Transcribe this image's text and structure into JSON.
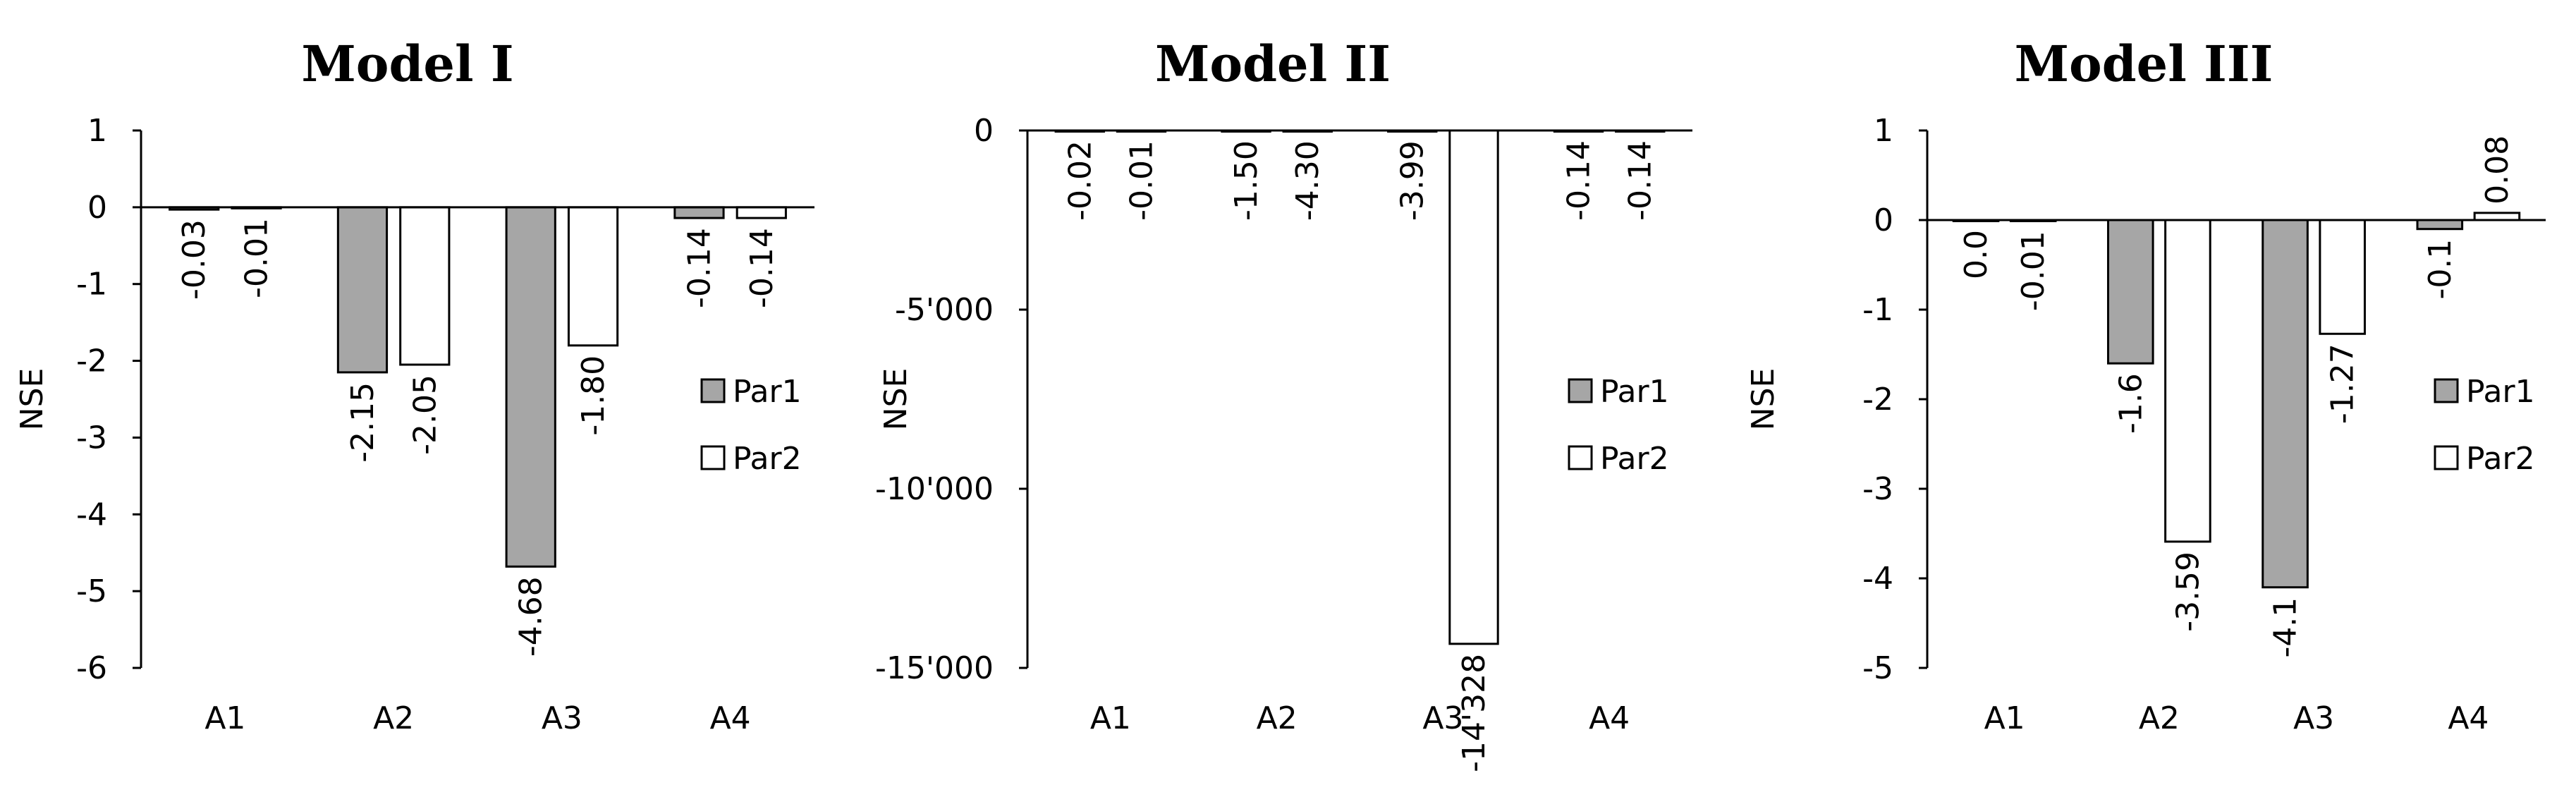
{
  "colors": {
    "Par1": "#a6a6a6",
    "Par2": "#ffffff",
    "stroke": "#000000"
  },
  "chart_data": [
    {
      "type": "bar",
      "title": "Model I",
      "ylabel": "NSE",
      "ylim": [
        -6,
        1
      ],
      "yticks": [
        1,
        0,
        -1,
        -2,
        -3,
        -4,
        -5,
        -6
      ],
      "ytick_labels": [
        "1",
        "0",
        "-1",
        "-2",
        "-3",
        "-4",
        "-5",
        "-6"
      ],
      "categories": [
        "A1",
        "A2",
        "A3",
        "A4"
      ],
      "series": [
        {
          "name": "Par1",
          "values": [
            -0.03,
            -2.15,
            -4.68,
            -0.14
          ],
          "labels": [
            "-0.03",
            "-2.15",
            "-4.68",
            "-0.14"
          ]
        },
        {
          "name": "Par2",
          "values": [
            -0.01,
            -2.05,
            -1.8,
            -0.14
          ],
          "labels": [
            "-0.01",
            "-2.05",
            "-1.80",
            "-0.14"
          ]
        }
      ],
      "legend": "right"
    },
    {
      "type": "bar",
      "title": "Model II",
      "ylabel": "NSE",
      "ylim": [
        -15000,
        0
      ],
      "yticks": [
        0,
        -5000,
        -10000,
        -15000
      ],
      "ytick_labels": [
        "0",
        "-5'000",
        "-10'000",
        "-15'000"
      ],
      "categories": [
        "A1",
        "A2",
        "A3",
        "A4"
      ],
      "series": [
        {
          "name": "Par1",
          "values": [
            -0.02,
            -1.5,
            -3.99,
            -0.14
          ],
          "labels": [
            "-0.02",
            "-1.50",
            "-3.99",
            "-0.14"
          ]
        },
        {
          "name": "Par2",
          "values": [
            -0.01,
            -4.3,
            -14328,
            -0.14
          ],
          "labels": [
            "-0.01",
            "-4.30",
            "-14'328",
            "-0.14"
          ]
        }
      ],
      "legend": "right"
    },
    {
      "type": "bar",
      "title": "Model III",
      "ylabel": "NSE",
      "ylim": [
        -5,
        1
      ],
      "yticks": [
        1,
        0,
        -1,
        -2,
        -3,
        -4,
        -5
      ],
      "ytick_labels": [
        "1",
        "0",
        "-1",
        "-2",
        "-3",
        "-4",
        "-5"
      ],
      "categories": [
        "A1",
        "A2",
        "A3",
        "A4"
      ],
      "series": [
        {
          "name": "Par1",
          "values": [
            0.0,
            -1.6,
            -4.1,
            -0.1
          ],
          "labels": [
            "0.0",
            "-1.6",
            "-4.1",
            "-0.1"
          ]
        },
        {
          "name": "Par2",
          "values": [
            -0.01,
            -3.59,
            -1.27,
            0.08
          ],
          "labels": [
            "-0.01",
            "-3.59",
            "-1.27",
            "0.08"
          ]
        }
      ],
      "legend": "right"
    }
  ]
}
